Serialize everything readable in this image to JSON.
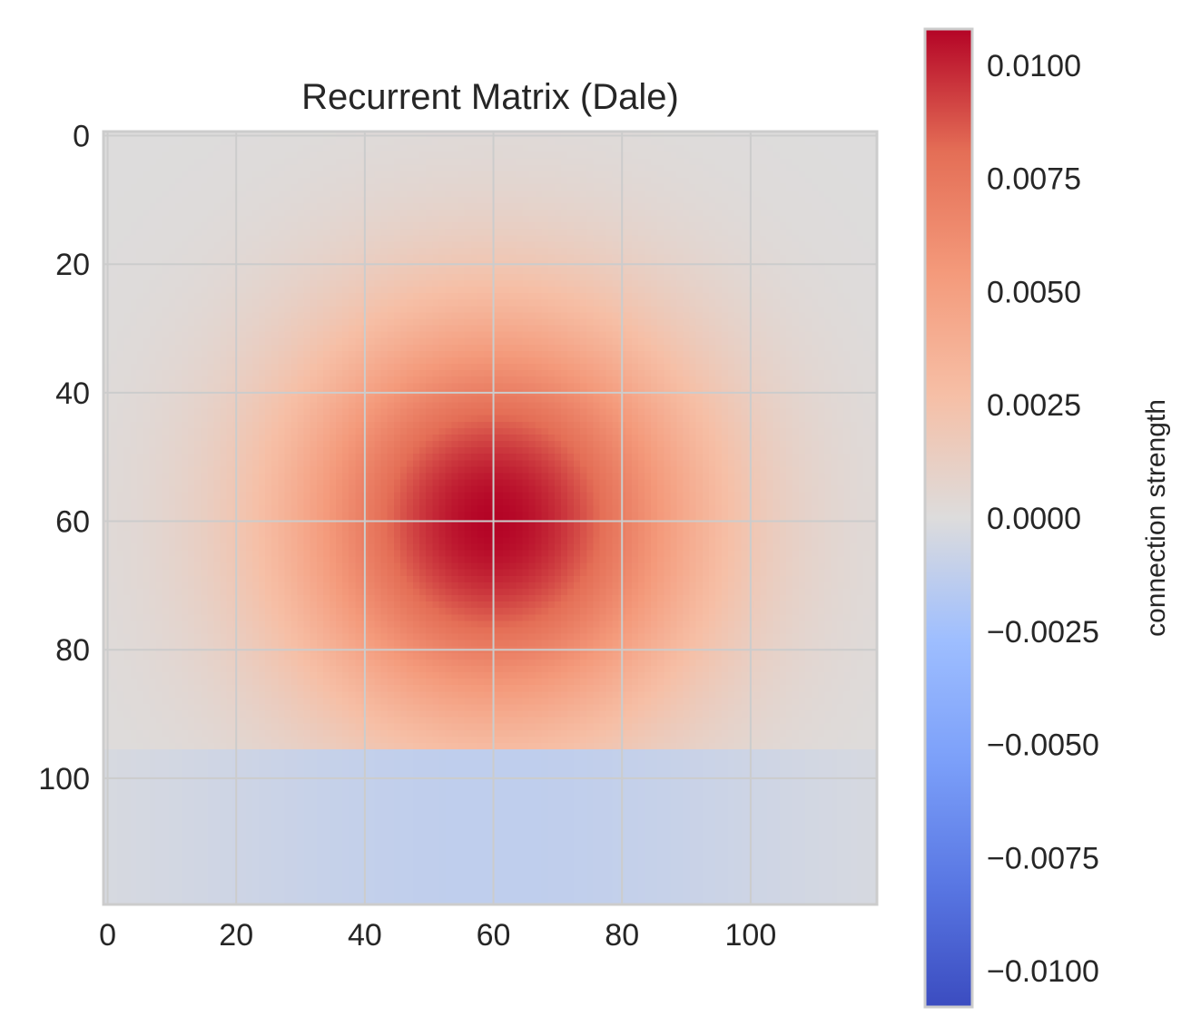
{
  "chart_data": {
    "type": "heatmap",
    "title": "Recurrent Matrix (Dale)",
    "xlabel": "",
    "ylabel": "",
    "matrix_size": 120,
    "x_ticks": [
      0,
      20,
      40,
      60,
      80,
      100
    ],
    "y_ticks": [
      0,
      20,
      40,
      60,
      80,
      100
    ],
    "x_tick_labels": [
      "0",
      "20",
      "40",
      "60",
      "80",
      "100"
    ],
    "y_tick_labels": [
      "0",
      "20",
      "40",
      "60",
      "80",
      "100"
    ],
    "xlim": [
      -0.5,
      119.5
    ],
    "ylim": [
      119.5,
      -0.5
    ],
    "grid": true,
    "colormap": "coolwarm",
    "vmin": -0.0108,
    "vmax": 0.0108,
    "excitatory_rows": [
      0,
      95
    ],
    "inhibitory_rows": [
      96,
      119
    ],
    "peak_center": [
      60,
      60
    ],
    "peak_value": 0.0108,
    "gaussian_sigma": 22,
    "inhibitory_value_at_center": -0.0013,
    "colorbar": {
      "label": "connection strength",
      "ticks": [
        0.01,
        0.0075,
        0.005,
        0.0025,
        0.0,
        -0.0025,
        -0.005,
        -0.0075,
        -0.01
      ],
      "tick_labels": [
        "0.0100",
        "0.0075",
        "0.0050",
        "0.0025",
        "0.0000",
        "−0.0025",
        "−0.0050",
        "−0.0075",
        "−0.0100"
      ]
    }
  }
}
